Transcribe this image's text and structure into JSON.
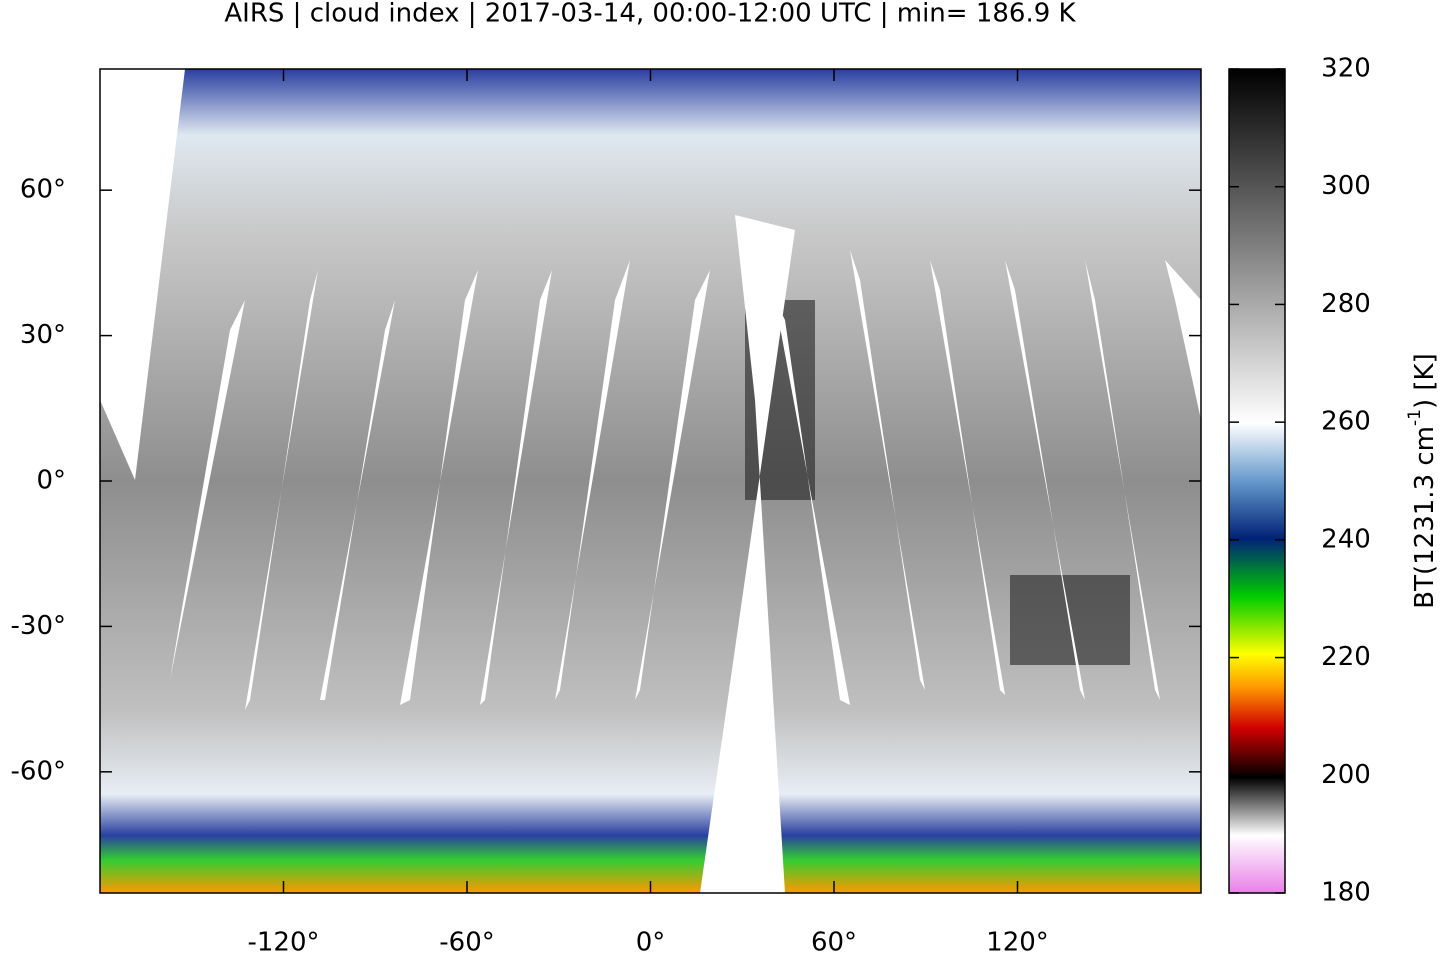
{
  "chart_data": {
    "type": "map",
    "title": "AIRS | cloud index | 2017-03-14, 00:00-12:00 UTC | min= 186.9 K",
    "xlim": [
      -180,
      180
    ],
    "ylim": [
      -85,
      85
    ],
    "xticks": [
      {
        "value": -120,
        "label": "-120°"
      },
      {
        "value": -60,
        "label": "-60°"
      },
      {
        "value": 0,
        "label": "0°"
      },
      {
        "value": 60,
        "label": "60°"
      },
      {
        "value": 120,
        "label": "120°"
      }
    ],
    "yticks": [
      {
        "value": 60,
        "label": "60°"
      },
      {
        "value": 30,
        "label": "30°"
      },
      {
        "value": 0,
        "label": "0°"
      },
      {
        "value": -30,
        "label": "-30°"
      },
      {
        "value": -60,
        "label": "-60°"
      }
    ],
    "colorbar": {
      "lim": [
        180,
        320
      ],
      "ticks": [
        180,
        200,
        220,
        240,
        260,
        280,
        300,
        320
      ],
      "label": "BT(1231.3 cm",
      "label_sup": "-1",
      "label_end": ") [K]"
    }
  }
}
